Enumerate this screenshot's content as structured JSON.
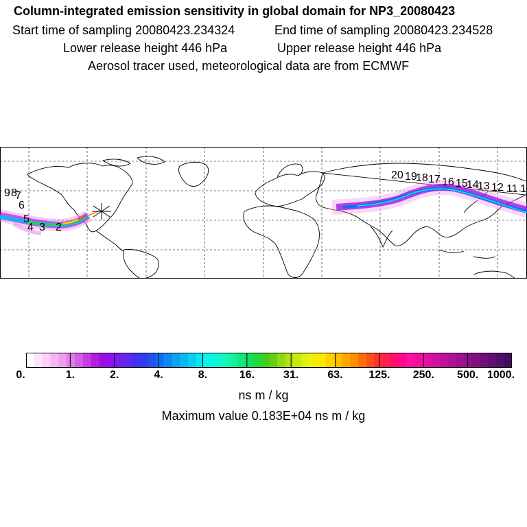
{
  "header": {
    "title": "Column-integrated emission sensitivity in global domain for NP3_20080423",
    "start": "Start time of sampling 20080423.234324",
    "end": "End time of sampling 20080423.234528",
    "lower": "Lower release height  446 hPa",
    "upper": "Upper release height  446 hPa",
    "note": "Aerosol tracer used, meteorological data are from ECMWF"
  },
  "map": {
    "projection": "equirectangular",
    "grid": true,
    "release_marker": "asterisk",
    "track_labels": [
      "2",
      "3",
      "4",
      "5",
      "6",
      "7",
      "8",
      "9",
      "11",
      "12",
      "13",
      "14",
      "15",
      "16",
      "17",
      "18",
      "19",
      "20",
      "1"
    ]
  },
  "colorbar": {
    "labels": [
      "0.",
      "1.",
      "2.",
      "4.",
      "8.",
      "16.",
      "31.",
      "63.",
      "125.",
      "250.",
      "500.",
      "1000."
    ],
    "colors": [
      "#ffffff",
      "#fde6fb",
      "#fbcff7",
      "#f7b6f3",
      "#f09cef",
      "#e47ee9",
      "#d65ee5",
      "#c63de2",
      "#b21fe0",
      "#9a0ee0",
      "#8d13ef",
      "#7a1df0",
      "#6127f0",
      "#4630f0",
      "#2f3cf0",
      "#2152f0",
      "#0f6ff0",
      "#0b88f0",
      "#0ba2f0",
      "#0ab9f0",
      "#0ad0f0",
      "#0ae6f0",
      "#0af5f0",
      "#0ff5dc",
      "#14f5c0",
      "#14f0a0",
      "#10e880",
      "#10e060",
      "#20d840",
      "#40d020",
      "#60d010",
      "#90d810",
      "#b0e010",
      "#c8e810",
      "#e0f010",
      "#f0f010",
      "#ffe800",
      "#ffd000",
      "#ffc000",
      "#ffa800",
      "#ff9000",
      "#ff7000",
      "#ff5020",
      "#ff3030",
      "#ff2050",
      "#ff1070",
      "#ff0890",
      "#ff10a0",
      "#f010a0",
      "#e010a0",
      "#d010a0",
      "#c010a0",
      "#b0109a",
      "#a01090",
      "#901088",
      "#801080",
      "#701078",
      "#601070",
      "#501068",
      "#400f60"
    ]
  },
  "units": "ns m / kg",
  "maximum": "Maximum value  0.183E+04 ns m / kg"
}
